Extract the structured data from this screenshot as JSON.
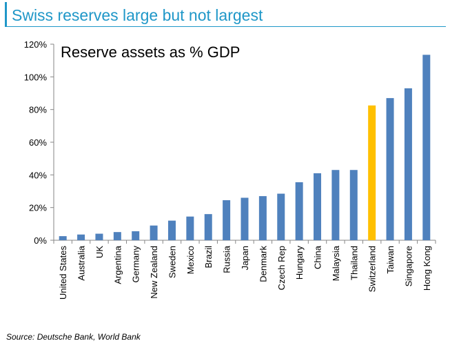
{
  "header": {
    "title": "Swiss reserves large but not largest"
  },
  "footer": {
    "source": "Source: Deutsche Bank, World Bank"
  },
  "chart_data": {
    "type": "bar",
    "title": "Reserve assets as % GDP",
    "xlabel": "",
    "ylabel": "",
    "ylim": [
      0,
      120
    ],
    "y_ticks": [
      0,
      20,
      40,
      60,
      80,
      100,
      120
    ],
    "y_tick_labels": [
      "0%",
      "20%",
      "40%",
      "60%",
      "80%",
      "100%",
      "120%"
    ],
    "grid": false,
    "categories": [
      "United States",
      "Australia",
      "UK",
      "Argentina",
      "Germany",
      "New Zealand",
      "Sweden",
      "Mexico",
      "Brazil",
      "Russia",
      "Japan",
      "Denmark",
      "Czech Rep",
      "Hungary",
      "China",
      "Malaysia",
      "Thailand",
      "Switzerland",
      "Taiwan",
      "Singapore",
      "Hong Kong"
    ],
    "values": [
      2.5,
      3.5,
      4,
      5,
      5.5,
      9,
      12,
      14.5,
      16,
      24.5,
      26,
      27,
      28.5,
      35.5,
      41,
      43,
      43,
      82.5,
      87,
      93,
      113.5
    ],
    "colors": {
      "default": "#4f81bd",
      "highlight": "#ffc000",
      "highlight_category": "Switzerland"
    }
  }
}
